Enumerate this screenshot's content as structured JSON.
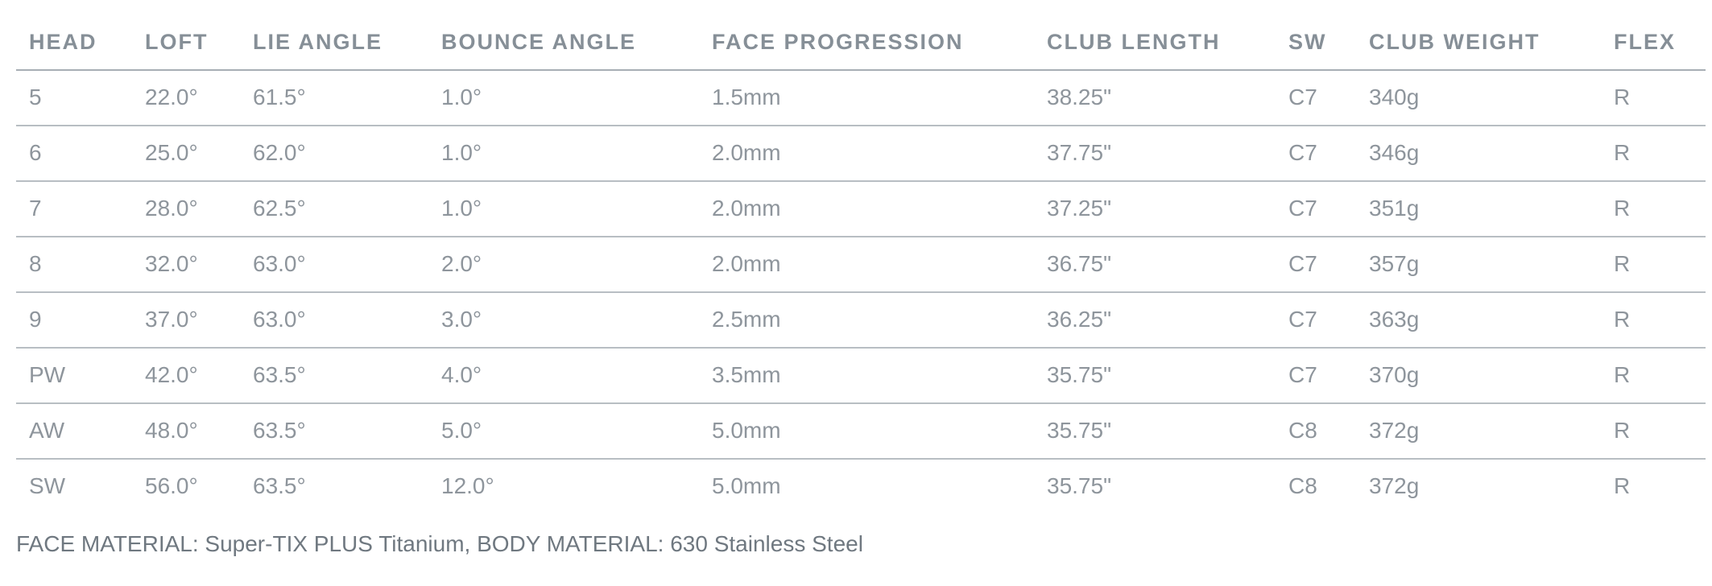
{
  "table": {
    "headers": [
      "HEAD",
      "LOFT",
      "LIE ANGLE",
      "BOUNCE ANGLE",
      "FACE PROGRESSION",
      "CLUB LENGTH",
      "SW",
      "CLUB WEIGHT",
      "FLEX"
    ],
    "rows": [
      [
        "5",
        "22.0°",
        "61.5°",
        "1.0°",
        "1.5mm",
        "38.25\"",
        "C7",
        "340g",
        "R"
      ],
      [
        "6",
        "25.0°",
        "62.0°",
        "1.0°",
        "2.0mm",
        "37.75\"",
        "C7",
        "346g",
        "R"
      ],
      [
        "7",
        "28.0°",
        "62.5°",
        "1.0°",
        "2.0mm",
        "37.25\"",
        "C7",
        "351g",
        "R"
      ],
      [
        "8",
        "32.0°",
        "63.0°",
        "2.0°",
        "2.0mm",
        "36.75\"",
        "C7",
        "357g",
        "R"
      ],
      [
        "9",
        "37.0°",
        "63.0°",
        "3.0°",
        "2.5mm",
        "36.25\"",
        "C7",
        "363g",
        "R"
      ],
      [
        "PW",
        "42.0°",
        "63.5°",
        "4.0°",
        "3.5mm",
        "35.75\"",
        "C7",
        "370g",
        "R"
      ],
      [
        "AW",
        "48.0°",
        "63.5°",
        "5.0°",
        "5.0mm",
        "35.75\"",
        "C8",
        "372g",
        "R"
      ],
      [
        "SW",
        "56.0°",
        "63.5°",
        "12.0°",
        "5.0mm",
        "35.75\"",
        "C8",
        "372g",
        "R"
      ]
    ]
  },
  "footer": {
    "note": "FACE MATERIAL: Super-TIX PLUS Titanium, BODY MATERIAL: 630 Stainless Steel"
  },
  "colors": {
    "text": "#8e959c",
    "header_text": "#868f97",
    "rule": "#b8bec3",
    "background": "#ffffff"
  }
}
